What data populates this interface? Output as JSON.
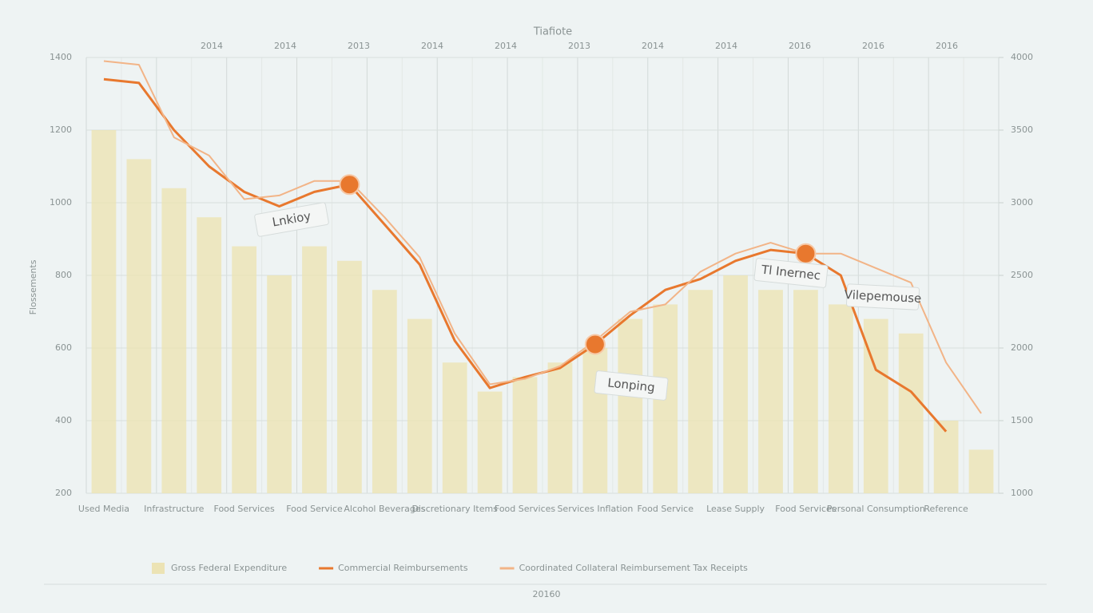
{
  "chart_data": {
    "type": "combo",
    "title": "Tiafiote",
    "ylabel": "Flossements",
    "xlabel": "20160",
    "top_axis_labels": [
      "2014",
      "2014",
      "2013",
      "2014",
      "2014",
      "2013",
      "2014",
      "2014",
      "2016",
      "2016",
      "2016"
    ],
    "categories": [
      "Used Media",
      null,
      "Infrastructure",
      null,
      "Food Services",
      null,
      "Food Service",
      null,
      "Alcohol Beverages",
      null,
      "Discretionary Items",
      null,
      "Food Services",
      null,
      "Services Inflation",
      null,
      "Food Service",
      null,
      "Lease Supply",
      null,
      "Food Services",
      null,
      "Personal Consumption",
      null,
      "Reference",
      null
    ],
    "ylim": [
      200,
      1400
    ],
    "yticks": [
      200,
      400,
      600,
      800,
      1000,
      1200,
      1400
    ],
    "y2lim": [
      1000,
      4000
    ],
    "y2ticks": [
      1000,
      1500,
      2000,
      2500,
      3000,
      3500,
      4000
    ],
    "grid": true,
    "series": [
      {
        "name": "Gross Federal Expenditure",
        "kind": "bar",
        "axis": "y2",
        "color": "#ece3b4",
        "values": [
          3500,
          3300,
          3100,
          2900,
          2700,
          2500,
          2700,
          2600,
          2400,
          2200,
          1900,
          1700,
          1800,
          1900,
          2000,
          2200,
          2300,
          2400,
          2500,
          2400,
          2400,
          2300,
          2200,
          2100,
          1500,
          1300
        ]
      },
      {
        "name": "Commercial Reimbursements",
        "kind": "line",
        "color": "#e8782e",
        "values": [
          1340,
          1330,
          1200,
          1100,
          1030,
          990,
          1030,
          1050,
          940,
          830,
          620,
          490,
          520,
          545,
          610,
          690,
          760,
          790,
          840,
          870,
          860,
          800,
          540,
          480,
          370,
          null
        ]
      },
      {
        "name": "Coordinated Collateral Reimbursement Tax Receipts",
        "kind": "line",
        "color": "#f2b487",
        "values": [
          1390,
          1380,
          1180,
          1130,
          1010,
          1020,
          1060,
          1060,
          960,
          850,
          640,
          500,
          515,
          550,
          620,
          700,
          720,
          810,
          860,
          890,
          860,
          860,
          820,
          780,
          560,
          420
        ]
      }
    ],
    "annotations": [
      "Lnkioy",
      "Lonping",
      "Tl Inernec",
      "Vilepemouse"
    ]
  }
}
